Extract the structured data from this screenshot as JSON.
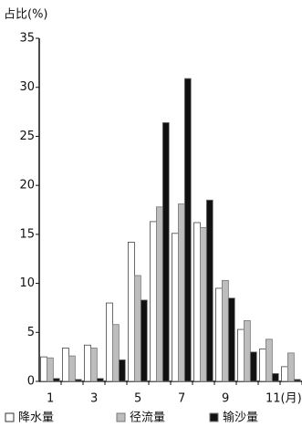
{
  "chart_data": {
    "type": "bar",
    "y_label": "占比(%)",
    "categories": [
      "1",
      null,
      "3",
      null,
      "5",
      null,
      "7",
      null,
      "9",
      null,
      "11(月)",
      null
    ],
    "series": [
      {
        "name": "降水量",
        "color": "#ffffff",
        "values": [
          2.5,
          3.4,
          3.7,
          8.0,
          14.2,
          16.3,
          15.1,
          16.2,
          9.5,
          5.3,
          3.3,
          1.5
        ]
      },
      {
        "name": "径流量",
        "color": "#bdbdbd",
        "values": [
          2.4,
          2.6,
          3.4,
          5.8,
          10.8,
          17.8,
          18.1,
          15.7,
          10.3,
          6.2,
          4.3,
          2.9
        ]
      },
      {
        "name": "输沙量",
        "color": "#111111",
        "values": [
          0.3,
          0.2,
          0.3,
          2.2,
          8.3,
          26.4,
          30.9,
          18.5,
          8.5,
          3.0,
          0.8,
          0.2
        ]
      }
    ],
    "ylim": [
      0,
      35
    ],
    "yticks": [
      0,
      5,
      10,
      15,
      20,
      25,
      30,
      35
    ]
  }
}
